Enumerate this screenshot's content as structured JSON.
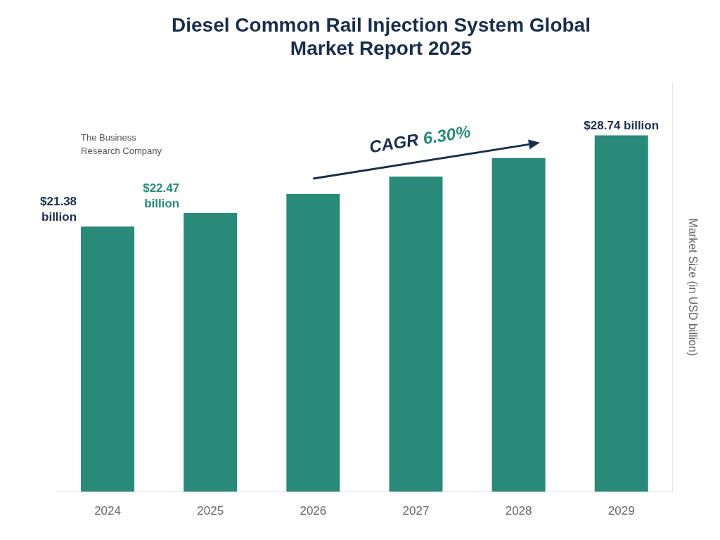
{
  "chart_data": {
    "type": "bar",
    "title": "Diesel Common Rail Injection System Global\nMarket Report 2025",
    "categories": [
      "2024",
      "2025",
      "2026",
      "2027",
      "2028",
      "2029"
    ],
    "values": [
      21.38,
      22.47,
      24.0,
      25.4,
      26.9,
      28.74
    ],
    "color": "#2a8a7a",
    "y_label": "Market Size (in USD billion)",
    "ylim": [
      0,
      33
    ],
    "tick_labels": "x",
    "grid": false,
    "annotations": [
      {
        "category": "2024",
        "text": "$21.38\nbillion",
        "color": "#1a2e4a"
      },
      {
        "category": "2025",
        "text": "$22.47\nbillion",
        "color": "#2a8a7a"
      },
      {
        "category": "2029",
        "text": "$28.74 billion",
        "color": "#1a2e4a"
      },
      {
        "text": [
          "CAGR ",
          "6.30%"
        ],
        "colors": [
          "#1a2e4a",
          "#2a8a7a"
        ],
        "arrow_color": "#1a2e4a"
      }
    ],
    "logo_text": "The Business\nResearch Company"
  }
}
